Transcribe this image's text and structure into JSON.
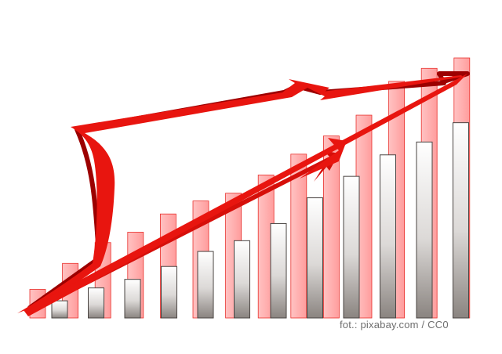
{
  "credit": "fot.: pixabay.com / CC0",
  "illustration": {
    "pink_bar_heights": [
      0.11,
      0.21,
      0.29,
      0.33,
      0.4,
      0.45,
      0.48,
      0.55,
      0.63,
      0.7,
      0.78,
      0.91,
      0.96,
      1.0
    ],
    "grey_bar_heights": [
      0.08,
      0.14,
      0.18,
      0.24,
      0.31,
      0.36,
      0.44,
      0.56,
      0.66,
      0.76,
      0.82,
      0.91
    ],
    "colors": {
      "pink_bar": "#ffb3b3",
      "pink_bar_edge": "#e8302c",
      "grey_bar_top": "#ffffff",
      "grey_bar_bottom": "#8a8480",
      "arrow": "#e8150f",
      "arrow_shadow": "#a00000"
    }
  }
}
